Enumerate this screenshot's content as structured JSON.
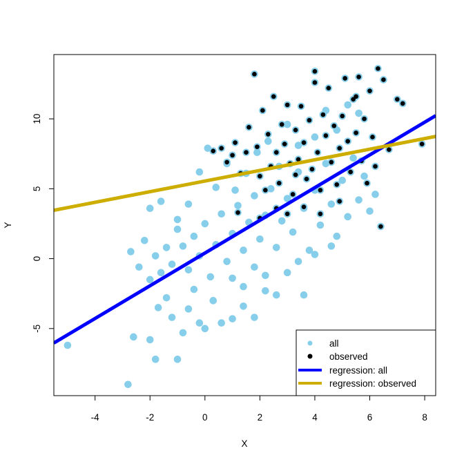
{
  "chart_data": {
    "type": "scatter",
    "xlabel": "X",
    "ylabel": "Y",
    "xlim": [
      -5.5,
      8.4
    ],
    "ylim": [
      -9.8,
      14.6
    ],
    "x_ticks": [
      -4,
      -2,
      0,
      2,
      4,
      6,
      8
    ],
    "y_ticks": [
      -5,
      0,
      5,
      10
    ],
    "x_tick_labels": [
      "-4",
      "-2",
      "0",
      "2",
      "4",
      "6",
      "8"
    ],
    "y_tick_labels": [
      "-5",
      "0",
      "5",
      "10"
    ],
    "grid": false,
    "legend_position": "bottom-right",
    "series": [
      {
        "name": "all",
        "kind": "points",
        "color": "#87CEEB",
        "points": [
          [
            -5.0,
            -6.2
          ],
          [
            -2.8,
            -9.0
          ],
          [
            -2.6,
            -5.6
          ],
          [
            -2.0,
            -5.8
          ],
          [
            -1.8,
            -7.2
          ],
          [
            -1.7,
            -3.5
          ],
          [
            -1.4,
            -2.8
          ],
          [
            -1.2,
            -4.2
          ],
          [
            -1.0,
            -7.2
          ],
          [
            -0.8,
            -5.3
          ],
          [
            -0.6,
            -3.6
          ],
          [
            -0.4,
            -2.2
          ],
          [
            -0.2,
            -4.6
          ],
          [
            0.0,
            -5.0
          ],
          [
            0.3,
            -3.0
          ],
          [
            0.6,
            -4.6
          ],
          [
            1.0,
            -4.3
          ],
          [
            1.4,
            -3.4
          ],
          [
            1.8,
            -4.2
          ],
          [
            2.2,
            -2.3
          ],
          [
            -2.7,
            0.5
          ],
          [
            -2.4,
            -0.6
          ],
          [
            -2.2,
            1.3
          ],
          [
            -2.0,
            -1.5
          ],
          [
            -1.8,
            0.2
          ],
          [
            -1.6,
            -1.0
          ],
          [
            -1.4,
            0.8
          ],
          [
            -1.2,
            -0.4
          ],
          [
            -1.0,
            2.1
          ],
          [
            -0.8,
            0.9
          ],
          [
            -0.6,
            -0.8
          ],
          [
            -0.4,
            1.6
          ],
          [
            -0.2,
            0.2
          ],
          [
            0.0,
            2.5
          ],
          [
            0.2,
            -1.3
          ],
          [
            0.4,
            1.0
          ],
          [
            0.6,
            3.2
          ],
          [
            0.8,
            -0.2
          ],
          [
            1.0,
            1.8
          ],
          [
            1.2,
            3.8
          ],
          [
            1.4,
            0.6
          ],
          [
            1.6,
            2.6
          ],
          [
            1.8,
            4.5
          ],
          [
            2.0,
            1.4
          ],
          [
            2.2,
            3.1
          ],
          [
            2.4,
            5.0
          ],
          [
            2.6,
            0.8
          ],
          [
            2.8,
            2.7
          ],
          [
            3.0,
            4.3
          ],
          [
            3.2,
            1.9
          ],
          [
            3.4,
            6.2
          ],
          [
            3.6,
            3.6
          ],
          [
            3.8,
            0.6
          ],
          [
            4.0,
            4.9
          ],
          [
            4.2,
            2.4
          ],
          [
            4.4,
            6.8
          ],
          [
            4.6,
            3.9
          ],
          [
            4.8,
            1.6
          ],
          [
            5.0,
            5.6
          ],
          [
            5.2,
            3.0
          ],
          [
            5.4,
            7.2
          ],
          [
            5.6,
            4.2
          ],
          [
            5.8,
            5.9
          ],
          [
            6.0,
            3.4
          ],
          [
            6.2,
            4.6
          ],
          [
            -2.0,
            3.6
          ],
          [
            -1.6,
            4.1
          ],
          [
            -1.0,
            2.8
          ],
          [
            -0.6,
            3.9
          ],
          [
            -0.2,
            6.2
          ],
          [
            0.1,
            7.9
          ],
          [
            0.4,
            5.1
          ],
          [
            0.8,
            6.8
          ],
          [
            1.1,
            4.9
          ],
          [
            1.5,
            6.1
          ],
          [
            1.9,
            7.6
          ],
          [
            2.3,
            8.4
          ],
          [
            2.7,
            6.6
          ],
          [
            3.0,
            9.6
          ],
          [
            3.4,
            8.1
          ],
          [
            4.0,
            8.7
          ],
          [
            4.4,
            10.6
          ],
          [
            4.8,
            9.2
          ],
          [
            5.2,
            11.0
          ],
          [
            5.6,
            10.4
          ],
          [
            1.0,
            -1.4
          ],
          [
            1.4,
            -2.0
          ],
          [
            1.8,
            -0.6
          ],
          [
            2.2,
            -1.2
          ],
          [
            2.6,
            -2.6
          ],
          [
            3.0,
            -1.0
          ],
          [
            3.4,
            -0.2
          ],
          [
            3.6,
            -2.6
          ],
          [
            4.0,
            0.3
          ],
          [
            4.6,
            0.9
          ]
        ]
      },
      {
        "name": "observed",
        "kind": "points",
        "color": "#000000",
        "points": [
          [
            0.3,
            7.7
          ],
          [
            0.6,
            7.9
          ],
          [
            0.8,
            6.9
          ],
          [
            1.0,
            7.4
          ],
          [
            1.1,
            8.3
          ],
          [
            1.3,
            6.1
          ],
          [
            1.5,
            7.6
          ],
          [
            1.6,
            9.4
          ],
          [
            1.8,
            13.2
          ],
          [
            1.9,
            8.0
          ],
          [
            2.0,
            5.9
          ],
          [
            2.1,
            10.6
          ],
          [
            2.3,
            8.9
          ],
          [
            2.4,
            6.6
          ],
          [
            2.5,
            11.6
          ],
          [
            2.6,
            7.6
          ],
          [
            2.7,
            5.4
          ],
          [
            2.8,
            9.6
          ],
          [
            2.9,
            8.2
          ],
          [
            3.0,
            11.0
          ],
          [
            3.1,
            6.8
          ],
          [
            3.2,
            4.6
          ],
          [
            3.3,
            9.2
          ],
          [
            3.4,
            7.1
          ],
          [
            3.5,
            10.9
          ],
          [
            3.6,
            8.3
          ],
          [
            3.7,
            5.7
          ],
          [
            3.8,
            9.9
          ],
          [
            3.9,
            6.4
          ],
          [
            4.0,
            12.6
          ],
          [
            4.1,
            7.6
          ],
          [
            4.2,
            4.9
          ],
          [
            4.3,
            10.3
          ],
          [
            4.4,
            8.8
          ],
          [
            4.5,
            12.2
          ],
          [
            4.6,
            6.9
          ],
          [
            4.7,
            9.5
          ],
          [
            4.8,
            5.3
          ],
          [
            4.9,
            7.9
          ],
          [
            5.0,
            10.2
          ],
          [
            5.1,
            12.9
          ],
          [
            5.2,
            8.4
          ],
          [
            5.3,
            6.2
          ],
          [
            5.4,
            11.4
          ],
          [
            5.5,
            9.0
          ],
          [
            5.6,
            13.0
          ],
          [
            5.7,
            7.0
          ],
          [
            5.8,
            10.0
          ],
          [
            6.0,
            12.0
          ],
          [
            6.1,
            8.7
          ],
          [
            6.2,
            6.6
          ],
          [
            6.3,
            13.6
          ],
          [
            6.4,
            2.3
          ],
          [
            6.5,
            12.8
          ],
          [
            6.7,
            7.8
          ],
          [
            7.0,
            11.4
          ],
          [
            7.2,
            11.1
          ],
          [
            7.9,
            8.2
          ],
          [
            3.0,
            3.2
          ],
          [
            3.6,
            3.7
          ],
          [
            4.2,
            3.2
          ],
          [
            2.6,
            3.6
          ],
          [
            2.0,
            2.9
          ],
          [
            1.2,
            3.3
          ],
          [
            4.9,
            4.1
          ],
          [
            5.9,
            5.4
          ],
          [
            4.0,
            13.4
          ],
          [
            5.5,
            11.6
          ],
          [
            3.3,
            6.0
          ],
          [
            2.2,
            4.9
          ]
        ]
      },
      {
        "name": "regression: all",
        "kind": "line",
        "color": "#0000FF",
        "intercept": 0.4,
        "slope": 1.17
      },
      {
        "name": "regression: observed",
        "kind": "line",
        "color": "#CDAD00",
        "intercept": 5.55,
        "slope": 0.38
      }
    ]
  },
  "legend": {
    "items": [
      {
        "label": "all",
        "color": "#87CEEB",
        "kind": "point"
      },
      {
        "label": "observed",
        "color": "#000000",
        "kind": "point"
      },
      {
        "label": "regression: all",
        "color": "#0000FF",
        "kind": "line"
      },
      {
        "label": "regression: observed",
        "color": "#CDAD00",
        "kind": "line"
      }
    ]
  }
}
